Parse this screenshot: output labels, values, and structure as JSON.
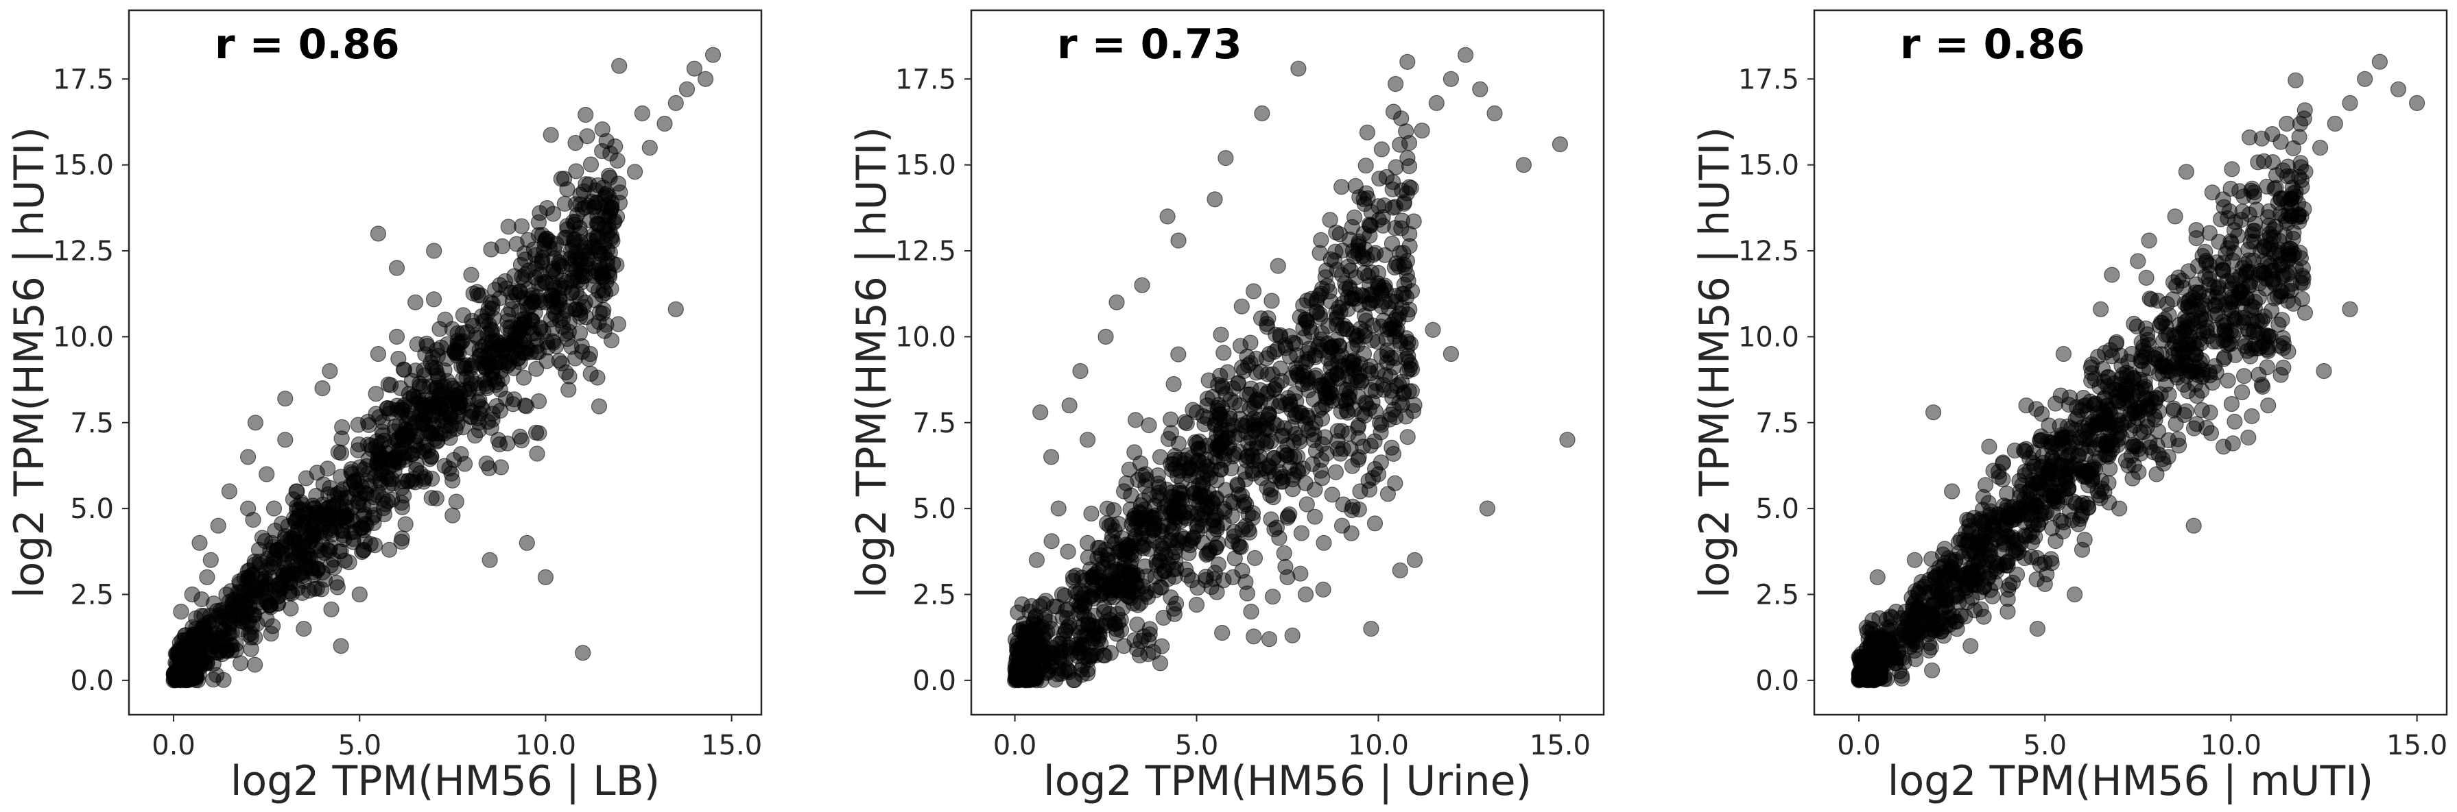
{
  "figure": {
    "panels": [
      {
        "xlabel": "log2 TPM(HM56 | LB)",
        "ylabel": "log2 TPM(HM56 | hUTI)",
        "annotation": "r = 0.86"
      },
      {
        "xlabel": "log2 TPM(HM56 | Urine)",
        "ylabel": "log2 TPM(HM56 | hUTI)",
        "annotation": "r = 0.73"
      },
      {
        "xlabel": "log2 TPM(HM56 | mUTI)",
        "ylabel": "log2 TPM(HM56 | hUTI)",
        "annotation": "r = 0.86"
      }
    ],
    "colors": {
      "points": "#000000",
      "frame": "#262626"
    }
  },
  "chart_data": [
    {
      "type": "scatter",
      "xlabel": "log2 TPM(HM56 | LB)",
      "ylabel": "log2 TPM(HM56 | hUTI)",
      "xlim": [
        -1.2,
        15.8
      ],
      "ylim": [
        -1.0,
        19.5
      ],
      "xticks": [
        0.0,
        5.0,
        10.0,
        15.0
      ],
      "yticks": [
        0.0,
        2.5,
        5.0,
        7.5,
        10.0,
        12.5,
        15.0,
        17.5
      ],
      "xtick_labels": [
        "0.0",
        "5.0",
        "10.0",
        "15.0"
      ],
      "ytick_labels": [
        "0.0",
        "2.5",
        "5.0",
        "7.5",
        "10.0",
        "12.5",
        "15.0",
        "17.5"
      ],
      "correlation": 0.86,
      "annotation": "r = 0.86",
      "grid": false,
      "series": [
        {
          "x": [
            0.0,
            0.1,
            0.2,
            0.3,
            0.5,
            0.4,
            0.8,
            0.6,
            1.0,
            1.2,
            0.2,
            0.5,
            1.5,
            1.8,
            2.0,
            2.2,
            1.0,
            0.7,
            2.5,
            2.8,
            3.0,
            3.2,
            3.5,
            2.0,
            1.5,
            3.8,
            4.0,
            4.2,
            4.5,
            4.8,
            5.0,
            5.2,
            5.5,
            5.8,
            6.0,
            6.2,
            6.5,
            6.8,
            7.0,
            7.2,
            7.5,
            7.8,
            8.0,
            8.2,
            8.5,
            8.8,
            9.0,
            9.3,
            9.6,
            10.0,
            10.4,
            10.8,
            11.2,
            11.6,
            12.0,
            12.4,
            12.8,
            13.2,
            13.5,
            13.8,
            14.0,
            14.3,
            14.5,
            3.0,
            4.0,
            5.5,
            6.5,
            2.5,
            7.0,
            8.5,
            9.5,
            1.2,
            2.0,
            3.5,
            5.0,
            6.0,
            7.5,
            8.0,
            10.0,
            11.0,
            4.5,
            5.5,
            3.0,
            2.2,
            6.8,
            7.6,
            9.0,
            1.8,
            0.9,
            13.5,
            11.2,
            12.6,
            10.5,
            6.0,
            4.2,
            3.3,
            2.7,
            5.8,
            8.8,
            7.3
          ],
          "y": [
            0.0,
            0.2,
            0.0,
            0.5,
            0.3,
            1.0,
            0.6,
            1.5,
            1.2,
            0.8,
            2.0,
            2.5,
            1.8,
            2.3,
            3.0,
            2.6,
            3.5,
            4.0,
            3.2,
            3.8,
            4.2,
            3.5,
            4.5,
            5.0,
            5.5,
            5.0,
            4.8,
            5.6,
            5.3,
            6.0,
            6.2,
            5.8,
            6.5,
            6.8,
            7.0,
            6.6,
            7.5,
            7.2,
            8.0,
            7.6,
            8.3,
            8.0,
            8.8,
            8.5,
            9.2,
            9.0,
            9.8,
            10.2,
            10.5,
            11.0,
            11.5,
            12.2,
            12.8,
            13.5,
            14.2,
            14.8,
            15.5,
            16.2,
            16.8,
            17.2,
            17.8,
            17.5,
            18.2,
            7.0,
            8.5,
            9.5,
            11.0,
            6.0,
            12.5,
            3.5,
            4.0,
            4.5,
            6.5,
            1.5,
            2.5,
            10.0,
            4.8,
            11.8,
            3.0,
            0.8,
            1.0,
            13.0,
            8.2,
            7.5,
            9.8,
            5.2,
            13.2,
            0.5,
            3.0,
            10.8,
            9.5,
            16.5,
            14.6,
            12.0,
            9.0,
            5.5,
            5.0,
            3.8,
            6.2,
            10.5
          ]
        }
      ]
    },
    {
      "type": "scatter",
      "xlabel": "log2 TPM(HM56 | Urine)",
      "ylabel": "log2 TPM(HM56 | hUTI)",
      "xlim": [
        -1.2,
        16.2
      ],
      "ylim": [
        -1.0,
        19.5
      ],
      "xticks": [
        0.0,
        5.0,
        10.0,
        15.0
      ],
      "yticks": [
        0.0,
        2.5,
        5.0,
        7.5,
        10.0,
        12.5,
        15.0,
        17.5
      ],
      "xtick_labels": [
        "0.0",
        "5.0",
        "10.0",
        "15.0"
      ],
      "ytick_labels": [
        "0.0",
        "2.5",
        "5.0",
        "7.5",
        "10.0",
        "12.5",
        "15.0",
        "17.5"
      ],
      "correlation": 0.73,
      "annotation": "r = 0.73",
      "grid": false,
      "series": [
        {
          "x": [
            0.0,
            0.1,
            0.3,
            0.2,
            0.5,
            0.8,
            0.4,
            1.0,
            1.3,
            0.6,
            1.6,
            2.0,
            2.3,
            1.2,
            2.6,
            3.0,
            3.3,
            2.0,
            3.6,
            4.0,
            4.3,
            4.6,
            5.0,
            5.3,
            5.6,
            6.0,
            6.3,
            6.6,
            7.0,
            7.3,
            7.6,
            8.0,
            8.3,
            8.6,
            9.0,
            9.3,
            9.6,
            10.0,
            10.4,
            10.8,
            11.2,
            11.6,
            12.0,
            12.4,
            12.8,
            13.2,
            14.0,
            15.0,
            15.2,
            1.0,
            1.5,
            2.5,
            3.5,
            4.5,
            5.5,
            6.5,
            7.5,
            8.5,
            9.5,
            2.0,
            3.0,
            4.0,
            5.0,
            6.0,
            7.0,
            8.0,
            9.0,
            10.0,
            11.0,
            12.0,
            13.0,
            1.8,
            2.8,
            4.2,
            5.8,
            0.7,
            9.8,
            10.6,
            11.5,
            6.8,
            7.8
          ],
          "y": [
            0.0,
            0.3,
            0.0,
            0.8,
            0.5,
            1.2,
            2.0,
            1.5,
            2.5,
            3.5,
            3.0,
            4.0,
            3.2,
            5.0,
            4.5,
            5.5,
            4.8,
            7.0,
            6.0,
            6.5,
            7.2,
            5.8,
            7.8,
            8.2,
            6.8,
            8.5,
            9.0,
            7.5,
            9.5,
            10.0,
            8.8,
            10.5,
            11.0,
            9.8,
            11.8,
            12.5,
            13.0,
            13.8,
            14.5,
            15.2,
            16.0,
            16.8,
            17.5,
            18.2,
            17.2,
            16.5,
            15.0,
            15.6,
            7.0,
            6.5,
            8.0,
            10.0,
            11.5,
            12.8,
            14.0,
            2.0,
            3.0,
            4.0,
            5.5,
            0.2,
            1.0,
            0.5,
            2.2,
            3.0,
            1.2,
            2.5,
            4.5,
            6.0,
            3.5,
            9.5,
            5.0,
            9.0,
            11.0,
            13.5,
            15.2,
            7.8,
            1.5,
            3.2,
            10.2,
            16.5,
            17.8
          ]
        }
      ]
    },
    {
      "type": "scatter",
      "xlabel": "log2 TPM(HM56 | mUTI)",
      "ylabel": "log2 TPM(HM56 | hUTI)",
      "xlim": [
        -1.2,
        15.8
      ],
      "ylim": [
        -1.0,
        19.5
      ],
      "xticks": [
        0.0,
        5.0,
        10.0,
        15.0
      ],
      "yticks": [
        0.0,
        2.5,
        5.0,
        7.5,
        10.0,
        12.5,
        15.0,
        17.5
      ],
      "xtick_labels": [
        "0.0",
        "5.0",
        "10.0",
        "15.0"
      ],
      "ytick_labels": [
        "0.0",
        "2.5",
        "5.0",
        "7.5",
        "10.0",
        "12.5",
        "15.0",
        "17.5"
      ],
      "correlation": 0.86,
      "annotation": "r = 0.86",
      "grid": false,
      "series": [
        {
          "x": [
            0.0,
            0.2,
            0.4,
            0.6,
            0.3,
            0.8,
            1.0,
            1.3,
            1.6,
            2.0,
            2.3,
            2.6,
            3.0,
            3.3,
            3.6,
            4.0,
            4.3,
            4.6,
            5.0,
            5.3,
            5.6,
            6.0,
            6.3,
            6.6,
            7.0,
            7.3,
            7.6,
            8.0,
            8.3,
            8.6,
            9.0,
            9.3,
            9.6,
            10.0,
            10.4,
            10.8,
            11.2,
            11.6,
            12.0,
            12.4,
            12.8,
            13.2,
            13.6,
            14.0,
            14.5,
            15.0,
            1.5,
            2.5,
            3.5,
            4.5,
            5.5,
            6.5,
            7.5,
            8.5,
            9.5,
            10.5,
            11.5,
            3.0,
            4.0,
            5.0,
            6.0,
            7.0,
            8.0,
            9.0,
            2.0,
            6.8,
            7.8,
            8.8,
            12.5,
            13.2,
            11.0,
            0.5,
            1.0,
            4.8,
            5.8,
            9.8
          ],
          "y": [
            0.0,
            0.4,
            0.0,
            0.8,
            1.5,
            1.2,
            2.0,
            1.8,
            2.5,
            2.2,
            3.0,
            3.5,
            3.2,
            4.0,
            4.5,
            4.2,
            5.0,
            5.5,
            5.2,
            6.0,
            6.5,
            6.2,
            7.0,
            7.5,
            7.2,
            8.0,
            8.5,
            8.2,
            9.0,
            9.5,
            9.8,
            10.5,
            10.2,
            11.0,
            11.8,
            12.5,
            13.2,
            14.0,
            14.8,
            15.5,
            16.2,
            16.8,
            17.5,
            18.0,
            17.2,
            16.8,
            3.5,
            5.5,
            6.8,
            8.0,
            9.5,
            10.8,
            12.2,
            13.5,
            14.2,
            15.8,
            16.2,
            1.0,
            2.0,
            2.8,
            3.8,
            5.0,
            6.0,
            4.5,
            7.8,
            11.8,
            12.8,
            14.8,
            9.0,
            10.8,
            8.0,
            3.0,
            0.5,
            1.5,
            2.5,
            6.8
          ]
        }
      ]
    }
  ]
}
